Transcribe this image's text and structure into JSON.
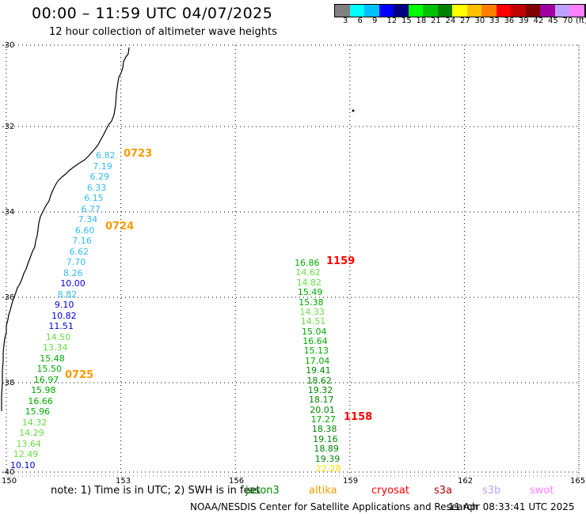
{
  "header": {
    "title": "00:00 – 11:59 UTC 04/07/2025",
    "subtitle": "12 hour collection of altimeter wave heights"
  },
  "scale": {
    "colors": [
      "#808080",
      "#00ffff",
      "#00c0ff",
      "#0000ff",
      "#000080",
      "#00ff00",
      "#00c000",
      "#008000",
      "#ffff00",
      "#ffc000",
      "#ff8000",
      "#ff0000",
      "#c00000",
      "#800000",
      "#a000a0",
      "#c0a0ff",
      "#ff80ff",
      "#000000"
    ],
    "labels": [
      "3",
      "6",
      "9",
      "12",
      "15",
      "18",
      "21",
      "24",
      "27",
      "30",
      "33",
      "36",
      "39",
      "42",
      "45",
      "70",
      "(ft)"
    ]
  },
  "axes": {
    "lat_labels": [
      "-30",
      "-32",
      "-34",
      "-36",
      "-38",
      "-40"
    ],
    "lon_labels": [
      "150",
      "153",
      "156",
      "159",
      "162",
      "165"
    ]
  },
  "tracks": [
    {
      "time_labels": [
        {
          "text": "0723",
          "color": "#ff9900"
        },
        {
          "text": "0724",
          "color": "#ff9900"
        },
        {
          "text": "0725",
          "color": "#ff9900"
        }
      ],
      "values": [
        {
          "v": "6.82",
          "c": "#33bbee"
        },
        {
          "v": "7.19",
          "c": "#33bbee"
        },
        {
          "v": "6.29",
          "c": "#33bbee"
        },
        {
          "v": "6.33",
          "c": "#33bbee"
        },
        {
          "v": "6.15",
          "c": "#33bbee"
        },
        {
          "v": "6.77",
          "c": "#33bbee"
        },
        {
          "v": "7.34",
          "c": "#33bbee"
        },
        {
          "v": "6.60",
          "c": "#33bbee"
        },
        {
          "v": "7.16",
          "c": "#33bbee"
        },
        {
          "v": "6.62",
          "c": "#33bbee"
        },
        {
          "v": "7.70",
          "c": "#33bbee"
        },
        {
          "v": "8.26",
          "c": "#33bbee"
        },
        {
          "v": "10.00",
          "c": "#0000dd"
        },
        {
          "v": "8.82",
          "c": "#33bbee"
        },
        {
          "v": "9.10",
          "c": "#0000dd"
        },
        {
          "v": "10.82",
          "c": "#0000dd"
        },
        {
          "v": "11.51",
          "c": "#0000dd"
        },
        {
          "v": "14.50",
          "c": "#66dd44"
        },
        {
          "v": "13.34",
          "c": "#66dd44"
        },
        {
          "v": "15.48",
          "c": "#00aa00"
        },
        {
          "v": "15.50",
          "c": "#00aa00"
        },
        {
          "v": "16.97",
          "c": "#00aa00"
        },
        {
          "v": "15.98",
          "c": "#00aa00"
        },
        {
          "v": "16.66",
          "c": "#00aa00"
        },
        {
          "v": "15.96",
          "c": "#00aa00"
        },
        {
          "v": "14.32",
          "c": "#66dd44"
        },
        {
          "v": "14.29",
          "c": "#66dd44"
        },
        {
          "v": "13.64",
          "c": "#66dd44"
        },
        {
          "v": "12.49",
          "c": "#66dd44"
        },
        {
          "v": "10.10",
          "c": "#0000dd"
        }
      ]
    },
    {
      "time_labels": [
        {
          "text": "1159",
          "color": "#ff0000"
        },
        {
          "text": "1158",
          "color": "#ff0000"
        }
      ],
      "values": [
        {
          "v": "16.86",
          "c": "#00aa00"
        },
        {
          "v": "14.62",
          "c": "#66dd44"
        },
        {
          "v": "14.82",
          "c": "#66dd44"
        },
        {
          "v": "15.49",
          "c": "#00aa00"
        },
        {
          "v": "15.38",
          "c": "#00aa00"
        },
        {
          "v": "14.33",
          "c": "#66dd44"
        },
        {
          "v": "14.51",
          "c": "#66dd44"
        },
        {
          "v": "15.04",
          "c": "#00aa00"
        },
        {
          "v": "16.64",
          "c": "#00aa00"
        },
        {
          "v": "15.13",
          "c": "#00aa00"
        },
        {
          "v": "17.04",
          "c": "#00aa00"
        },
        {
          "v": "19.41",
          "c": "#008800"
        },
        {
          "v": "18.62",
          "c": "#008800"
        },
        {
          "v": "19.32",
          "c": "#008800"
        },
        {
          "v": "18.17",
          "c": "#008800"
        },
        {
          "v": "20.01",
          "c": "#008800"
        },
        {
          "v": "17.27",
          "c": "#00aa00"
        },
        {
          "v": "18.38",
          "c": "#008800"
        },
        {
          "v": "19.16",
          "c": "#008800"
        },
        {
          "v": "18.89",
          "c": "#008800"
        },
        {
          "v": "19.39",
          "c": "#008800"
        },
        {
          "v": "22.28",
          "c": "#ffdd00"
        }
      ]
    }
  ],
  "footer": {
    "note": "note: 1) Time is in UTC; 2) SWH is in feet",
    "satellites": [
      {
        "name": "jason3",
        "color": "#008800"
      },
      {
        "name": "altika",
        "color": "#ff9900"
      },
      {
        "name": "cryosat",
        "color": "#ff0000"
      },
      {
        "name": "s3a",
        "color": "#aa0000"
      },
      {
        "name": "s3b",
        "color": "#c0a0ff"
      },
      {
        "name": "swot",
        "color": "#ff80ff"
      }
    ],
    "credit": "NOAA/NESDIS Center for Satellite Applications and Research",
    "timestamp": "11 Apr 08:33:41 UTC 2025"
  }
}
